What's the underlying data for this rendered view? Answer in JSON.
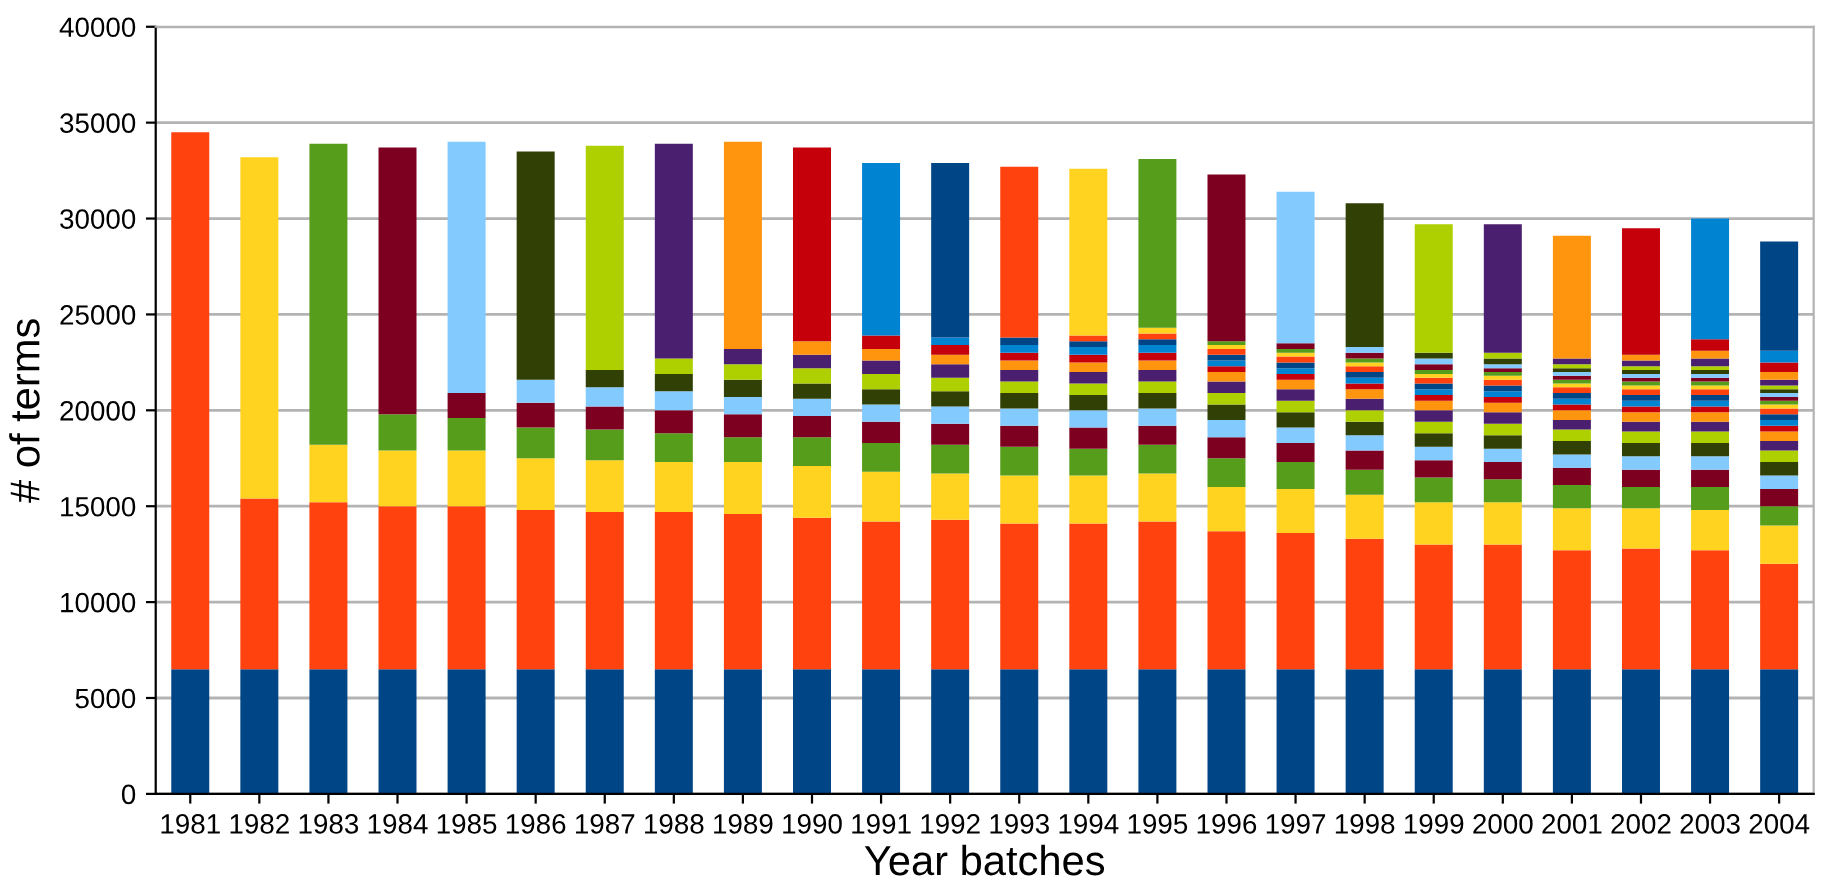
{
  "chart_data": {
    "type": "bar",
    "stacked": true,
    "xlabel": "Year batches",
    "ylabel": "# of terms",
    "categories": [
      "1981",
      "1982",
      "1983",
      "1984",
      "1985",
      "1986",
      "1987",
      "1988",
      "1989",
      "1990",
      "1991",
      "1992",
      "1993",
      "1994",
      "1995",
      "1996",
      "1997",
      "1998",
      "1999",
      "2000",
      "2001",
      "2002",
      "2003",
      "2004"
    ],
    "ylim": [
      0,
      40000
    ],
    "yticks": [
      0,
      5000,
      10000,
      15000,
      20000,
      25000,
      30000,
      35000,
      40000
    ],
    "grid": "y",
    "legend": false,
    "series": [
      {
        "color": "#004586",
        "values": [
          6500,
          6500,
          6500,
          6500,
          6500,
          6500,
          6500,
          6500,
          6500,
          6500,
          6500,
          6500,
          6500,
          6500,
          6500,
          6500,
          6500,
          6500,
          6500,
          6500,
          6500,
          6500,
          6500,
          6500
        ]
      },
      {
        "color": "#ff420e",
        "values": [
          28000,
          8900,
          8700,
          8500,
          8500,
          8300,
          8200,
          8200,
          8100,
          7900,
          7700,
          7800,
          7600,
          7600,
          7700,
          7200,
          7100,
          6800,
          6500,
          6500,
          6200,
          6300,
          6200,
          5500
        ]
      },
      {
        "color": "#ffd320",
        "values": [
          null,
          17800,
          3000,
          2900,
          2900,
          2700,
          2700,
          2600,
          2700,
          2700,
          2600,
          2400,
          2500,
          2500,
          2500,
          2300,
          2300,
          2300,
          2200,
          2200,
          2200,
          2100,
          2100,
          2000
        ]
      },
      {
        "color": "#579d1c",
        "values": [
          null,
          null,
          15700,
          1900,
          1700,
          1600,
          1600,
          1500,
          1300,
          1500,
          1500,
          1500,
          1500,
          1400,
          1500,
          1500,
          1400,
          1300,
          1300,
          1200,
          1200,
          1100,
          1200,
          1000
        ]
      },
      {
        "color": "#7e0021",
        "values": [
          null,
          null,
          null,
          13900,
          1300,
          1300,
          1200,
          1200,
          1200,
          1100,
          1100,
          1100,
          1100,
          1100,
          1000,
          1100,
          1000,
          1000,
          900,
          900,
          900,
          900,
          900,
          900
        ]
      },
      {
        "color": "#83caff",
        "values": [
          null,
          null,
          null,
          null,
          13100,
          1200,
          1000,
          1000,
          900,
          900,
          900,
          900,
          900,
          900,
          900,
          900,
          800,
          800,
          700,
          700,
          700,
          700,
          700,
          700
        ]
      },
      {
        "color": "#314004",
        "values": [
          null,
          null,
          null,
          null,
          null,
          11900,
          900,
          900,
          900,
          800,
          800,
          800,
          800,
          800,
          800,
          800,
          800,
          700,
          700,
          700,
          700,
          700,
          700,
          700
        ]
      },
      {
        "color": "#aecf00",
        "values": [
          null,
          null,
          null,
          null,
          null,
          null,
          11700,
          800,
          800,
          800,
          800,
          700,
          600,
          600,
          600,
          600,
          600,
          600,
          600,
          600,
          600,
          600,
          600,
          600
        ]
      },
      {
        "color": "#4b1f6f",
        "values": [
          null,
          null,
          null,
          null,
          null,
          null,
          null,
          11200,
          800,
          700,
          700,
          700,
          600,
          600,
          600,
          600,
          600,
          600,
          600,
          600,
          500,
          500,
          500,
          500
        ]
      },
      {
        "color": "#ff950e",
        "values": [
          null,
          null,
          null,
          null,
          null,
          null,
          null,
          null,
          10800,
          700,
          600,
          500,
          500,
          500,
          500,
          500,
          500,
          500,
          500,
          500,
          500,
          500,
          500,
          500
        ]
      },
      {
        "color": "#c5000b",
        "values": [
          null,
          null,
          null,
          null,
          null,
          null,
          null,
          null,
          null,
          10100,
          700,
          500,
          400,
          400,
          400,
          300,
          300,
          300,
          300,
          300,
          300,
          300,
          300,
          300
        ]
      },
      {
        "color": "#0084d1",
        "values": [
          null,
          null,
          null,
          null,
          null,
          null,
          null,
          null,
          null,
          null,
          9000,
          400,
          400,
          400,
          400,
          300,
          300,
          300,
          300,
          300,
          300,
          300,
          300,
          300
        ]
      },
      {
        "color": "#004586",
        "values": [
          null,
          null,
          null,
          null,
          null,
          null,
          null,
          null,
          null,
          null,
          null,
          9100,
          400,
          300,
          300,
          300,
          300,
          300,
          300,
          300,
          300,
          300,
          300,
          300
        ]
      },
      {
        "color": "#ff420e",
        "values": [
          null,
          null,
          null,
          null,
          null,
          null,
          null,
          null,
          null,
          null,
          null,
          null,
          8900,
          300,
          300,
          300,
          300,
          300,
          300,
          300,
          300,
          300,
          300,
          300
        ]
      },
      {
        "color": "#ffd320",
        "values": [
          null,
          null,
          null,
          null,
          null,
          null,
          null,
          null,
          null,
          null,
          null,
          null,
          null,
          8700,
          300,
          200,
          200,
          200,
          200,
          200,
          200,
          200,
          200,
          200
        ]
      },
      {
        "color": "#579d1c",
        "values": [
          null,
          null,
          null,
          null,
          null,
          null,
          null,
          null,
          null,
          null,
          null,
          null,
          null,
          null,
          8800,
          200,
          200,
          200,
          200,
          200,
          200,
          200,
          200,
          200
        ]
      },
      {
        "color": "#7e0021",
        "values": [
          null,
          null,
          null,
          null,
          null,
          null,
          null,
          null,
          null,
          null,
          null,
          null,
          null,
          null,
          null,
          8700,
          300,
          300,
          300,
          200,
          200,
          200,
          200,
          200
        ]
      },
      {
        "color": "#83caff",
        "values": [
          null,
          null,
          null,
          null,
          null,
          null,
          null,
          null,
          null,
          null,
          null,
          null,
          null,
          null,
          null,
          null,
          7900,
          300,
          300,
          200,
          200,
          200,
          200,
          200
        ]
      },
      {
        "color": "#314004",
        "values": [
          null,
          null,
          null,
          null,
          null,
          null,
          null,
          null,
          null,
          null,
          null,
          null,
          null,
          null,
          null,
          null,
          null,
          7500,
          300,
          300,
          200,
          200,
          200,
          200
        ]
      },
      {
        "color": "#aecf00",
        "values": [
          null,
          null,
          null,
          null,
          null,
          null,
          null,
          null,
          null,
          null,
          null,
          null,
          null,
          null,
          null,
          null,
          null,
          null,
          6700,
          300,
          200,
          200,
          200,
          200
        ]
      },
      {
        "color": "#4b1f6f",
        "values": [
          null,
          null,
          null,
          null,
          null,
          null,
          null,
          null,
          null,
          null,
          null,
          null,
          null,
          null,
          null,
          null,
          null,
          null,
          null,
          6700,
          300,
          300,
          400,
          300
        ]
      },
      {
        "color": "#ff950e",
        "values": [
          null,
          null,
          null,
          null,
          null,
          null,
          null,
          null,
          null,
          null,
          null,
          null,
          null,
          null,
          null,
          null,
          null,
          null,
          null,
          null,
          6400,
          300,
          400,
          400
        ]
      },
      {
        "color": "#c5000b",
        "values": [
          null,
          null,
          null,
          null,
          null,
          null,
          null,
          null,
          null,
          null,
          null,
          null,
          null,
          null,
          null,
          null,
          null,
          null,
          null,
          null,
          null,
          6600,
          600,
          500
        ]
      },
      {
        "color": "#0084d1",
        "values": [
          null,
          null,
          null,
          null,
          null,
          null,
          null,
          null,
          null,
          null,
          null,
          null,
          null,
          null,
          null,
          null,
          null,
          null,
          null,
          null,
          null,
          null,
          6300,
          600
        ]
      },
      {
        "color": "#004586",
        "values": [
          null,
          null,
          null,
          null,
          null,
          null,
          null,
          null,
          null,
          null,
          null,
          null,
          null,
          null,
          null,
          null,
          null,
          null,
          null,
          null,
          null,
          null,
          null,
          5700
        ]
      }
    ]
  }
}
